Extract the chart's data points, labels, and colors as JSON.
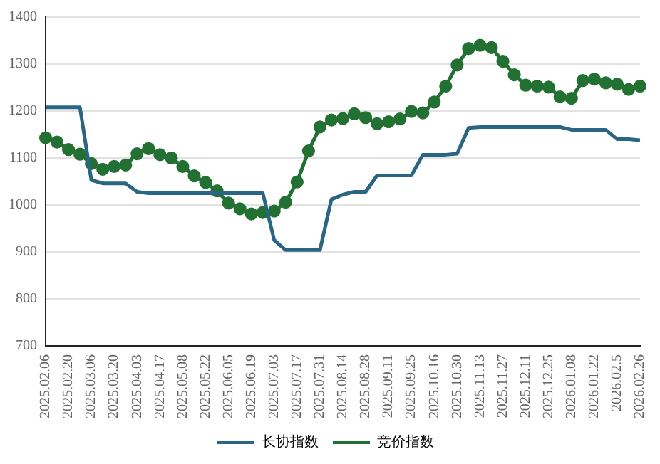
{
  "chart_data": {
    "type": "line",
    "categories": [
      "2025.02.06",
      null,
      "2025.02.20",
      null,
      "2025.03.06",
      null,
      "2025.03.20",
      null,
      "2025.04.03",
      null,
      "2025.04.17",
      null,
      "2025.05.08",
      null,
      "2025.05.22",
      null,
      "2025.06.05",
      null,
      "2025.06.19",
      null,
      "2025.07.03",
      null,
      "2025.07.17",
      null,
      "2025.07.31",
      null,
      "2025.08.14",
      null,
      "2025.08.28",
      null,
      "2025.09.11",
      null,
      "2025.09.25",
      null,
      "2025.10.16",
      null,
      "2025.10.30",
      null,
      "2025.11.13",
      null,
      "2025.11.27",
      null,
      "2025.12.11",
      null,
      "2025.12.25",
      null,
      "2026.01.08",
      null,
      "2026.01.22",
      null,
      "2026.02.5",
      null,
      "2026.02.26"
    ],
    "series": [
      {
        "name": "长协指数",
        "color": "#2b6584",
        "marker": "none",
        "values": [
          1208,
          1208,
          1208,
          1208,
          1053,
          1046,
          1046,
          1046,
          1028,
          1025,
          1025,
          1025,
          1025,
          1025,
          1025,
          1025,
          1025,
          1025,
          1025,
          1025,
          925,
          904,
          904,
          904,
          904,
          1012,
          1022,
          1028,
          1028,
          1063,
          1063,
          1063,
          1063,
          1107,
          1107,
          1107,
          1109,
          1164,
          1166,
          1166,
          1166,
          1166,
          1166,
          1166,
          1166,
          1166,
          1160,
          1160,
          1160,
          1160,
          1140,
          1140,
          1138
        ]
      },
      {
        "name": "竞价指数",
        "color": "#237033",
        "marker": "circle",
        "values": [
          1143,
          1134,
          1118,
          1108,
          1088,
          1076,
          1082,
          1085,
          1109,
          1120,
          1107,
          1100,
          1082,
          1062,
          1048,
          1030,
          1004,
          992,
          981,
          984,
          987,
          1006,
          1049,
          1115,
          1166,
          1181,
          1184,
          1194,
          1186,
          1173,
          1177,
          1183,
          1199,
          1196,
          1219,
          1253,
          1298,
          1333,
          1340,
          1335,
          1306,
          1277,
          1255,
          1253,
          1251,
          1230,
          1227,
          1265,
          1268,
          1260,
          1257,
          1246,
          1253
        ]
      }
    ],
    "ylim": [
      700,
      1400
    ],
    "yticks": [
      700,
      800,
      900,
      1000,
      1100,
      1200,
      1300,
      1400
    ],
    "grid": "y",
    "legend": "bottom",
    "line_style": "solid"
  }
}
